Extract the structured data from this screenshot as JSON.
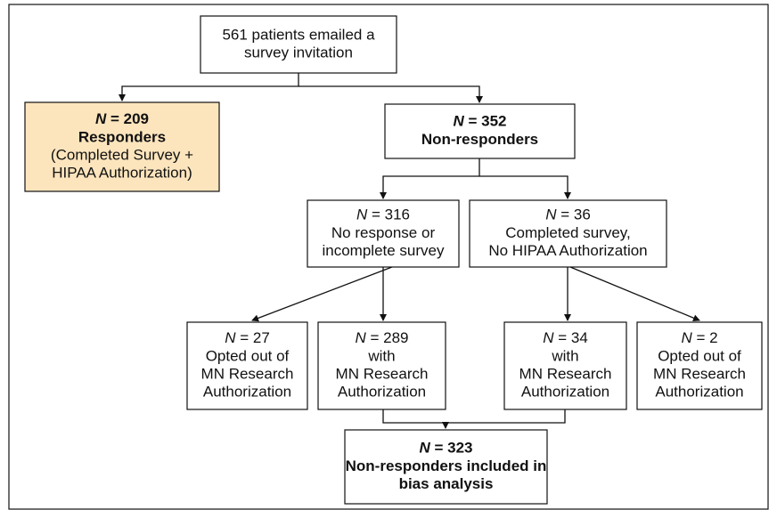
{
  "nodes": [
    {
      "lines": [
        "561 patients emailed a",
        "survey invitation"
      ]
    },
    {
      "variable": "N",
      "count": "= 209",
      "lines": [
        "Responders",
        "(Completed Survey +",
        "HIPAA Authorization)"
      ]
    },
    {
      "variable": "N",
      "count": "= 352",
      "lines": [
        "Non-responders"
      ]
    },
    {
      "variable": "N",
      "count": "= 316",
      "lines": [
        "No response or",
        "incomplete survey"
      ]
    },
    {
      "variable": "N",
      "count": "= 36",
      "lines": [
        "Completed survey,",
        "No HIPAA Authorization"
      ]
    },
    {
      "variable": "N",
      "count": "= 27",
      "lines": [
        "Opted out of",
        "MN Research",
        "Authorization"
      ]
    },
    {
      "variable": "N",
      "count": "= 289",
      "lines": [
        "with",
        "MN Research",
        "Authorization"
      ]
    },
    {
      "variable": "N",
      "count": "= 34",
      "lines": [
        "with",
        "MN Research",
        "Authorization"
      ]
    },
    {
      "variable": "N",
      "count": "= 2",
      "lines": [
        "Opted out of",
        "MN Research",
        "Authorization"
      ]
    },
    {
      "variable": "N",
      "count": "= 323",
      "lines": [
        "Non-responders included in",
        "bias analysis"
      ]
    }
  ]
}
